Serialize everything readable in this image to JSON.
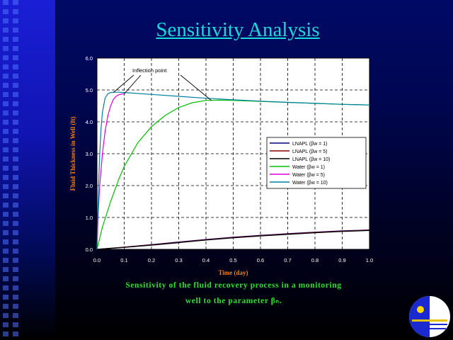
{
  "slide": {
    "title": "Sensitivity Analysis",
    "caption_line1": "Sensitivity of the fluid recovery process in a monitoring",
    "caption_line2": "well to the parameter βₙ."
  },
  "colors": {
    "title": "#19d9d9",
    "axis_label": "#ff7f00",
    "caption": "#2fe02f"
  },
  "chart_data": {
    "type": "line",
    "xlabel": "Time (day)",
    "ylabel": "Fluid Thickness in Well (ft)",
    "xlim": [
      0.0,
      1.0
    ],
    "ylim": [
      0.0,
      6.0
    ],
    "xticks": [
      "0.0",
      "0.1",
      "0.2",
      "0.3",
      "0.4",
      "0.5",
      "0.6",
      "0.7",
      "0.8",
      "0.9",
      "1.0"
    ],
    "yticks": [
      "0.0",
      "1.0",
      "2.0",
      "3.0",
      "4.0",
      "5.0",
      "6.0"
    ],
    "grid": true,
    "legend_position": "center-right",
    "annotation": {
      "text": "Inflection point"
    },
    "series": [
      {
        "name": "LNAPL (βw = 1)",
        "color": "#000080",
        "x": [
          0,
          0.1,
          0.2,
          0.3,
          0.4,
          0.5,
          0.6,
          0.7,
          0.8,
          0.9,
          1.0
        ],
        "y": [
          0,
          0.07,
          0.15,
          0.23,
          0.31,
          0.38,
          0.44,
          0.49,
          0.54,
          0.58,
          0.61
        ]
      },
      {
        "name": "LNAPL (βw = 5)",
        "color": "#8b0000",
        "x": [
          0,
          0.1,
          0.2,
          0.3,
          0.4,
          0.5,
          0.6,
          0.7,
          0.8,
          0.9,
          1.0
        ],
        "y": [
          0,
          0.065,
          0.14,
          0.22,
          0.3,
          0.37,
          0.43,
          0.48,
          0.53,
          0.57,
          0.6
        ]
      },
      {
        "name": "LNAPL (βw = 10)",
        "color": "#000000",
        "x": [
          0,
          0.1,
          0.2,
          0.3,
          0.4,
          0.5,
          0.6,
          0.7,
          0.8,
          0.9,
          1.0
        ],
        "y": [
          0,
          0.06,
          0.13,
          0.21,
          0.29,
          0.36,
          0.42,
          0.47,
          0.52,
          0.56,
          0.59
        ]
      },
      {
        "name": "Water (βw = 1)",
        "color": "#00c000",
        "x": [
          0,
          0.02,
          0.05,
          0.08,
          0.1,
          0.15,
          0.2,
          0.25,
          0.3,
          0.35,
          0.4,
          0.45,
          0.5,
          0.6,
          0.7,
          0.8,
          0.9,
          1.0
        ],
        "y": [
          0,
          0.7,
          1.5,
          2.2,
          2.6,
          3.35,
          3.85,
          4.2,
          4.45,
          4.6,
          4.67,
          4.68,
          4.67,
          4.64,
          4.61,
          4.58,
          4.55,
          4.53
        ]
      },
      {
        "name": "Water (βw = 5)",
        "color": "#e000e0",
        "x": [
          0,
          0.005,
          0.01,
          0.02,
          0.03,
          0.04,
          0.05,
          0.06,
          0.07,
          0.08,
          0.09,
          0.1
        ],
        "y": [
          0,
          1.2,
          2.0,
          3.0,
          3.7,
          4.2,
          4.5,
          4.7,
          4.8,
          4.85,
          4.87,
          4.88
        ]
      },
      {
        "name": "Water (βw = 10)",
        "color": "#0080a0",
        "x": [
          0,
          0.005,
          0.01,
          0.015,
          0.02,
          0.03,
          0.04,
          0.05,
          0.06,
          0.08,
          0.1,
          0.2,
          0.3,
          0.4,
          0.5,
          0.6,
          0.7,
          0.8,
          0.9,
          1.0
        ],
        "y": [
          0,
          1.8,
          3.0,
          3.8,
          4.3,
          4.75,
          4.88,
          4.92,
          4.93,
          4.93,
          4.92,
          4.86,
          4.8,
          4.74,
          4.69,
          4.65,
          4.61,
          4.58,
          4.55,
          4.53
        ]
      }
    ]
  }
}
